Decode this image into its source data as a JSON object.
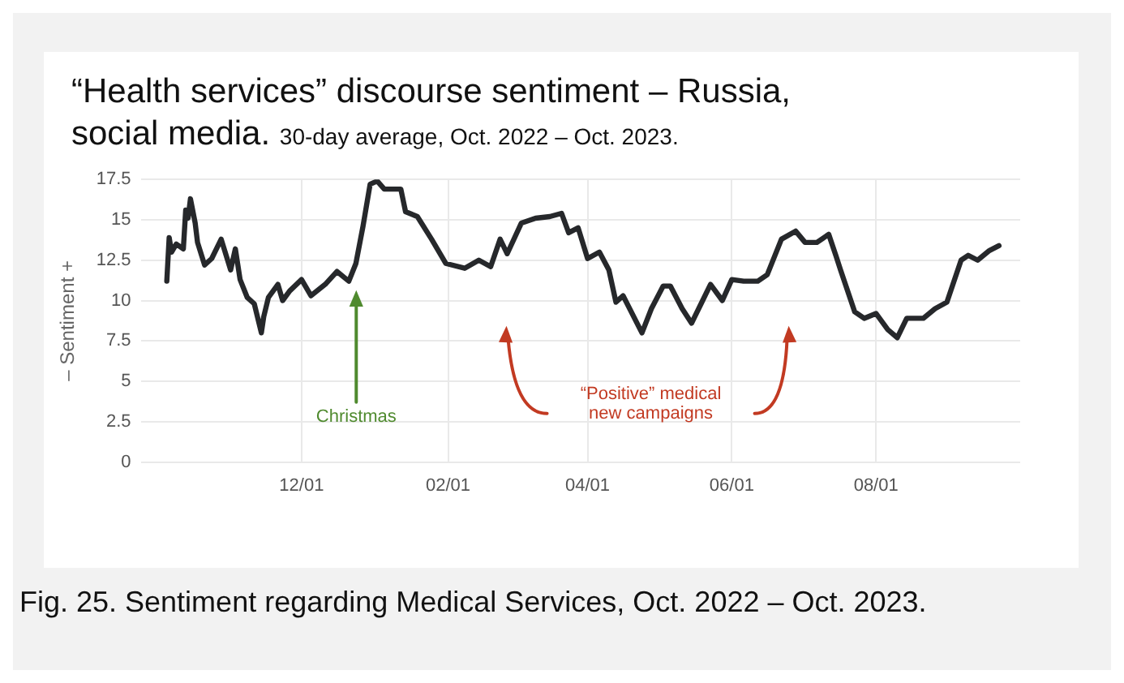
{
  "chart_data": {
    "type": "line",
    "title": "“Health services” discourse sentiment – Russia, social media.",
    "subtitle": "30-day average, Oct. 2022 – Oct. 2023.",
    "ylabel": "– Sentiment +",
    "x": [
      "2022-10-05",
      "2022-10-06",
      "2022-10-07",
      "2022-10-09",
      "2022-10-12",
      "2022-10-13",
      "2022-10-14",
      "2022-10-15",
      "2022-10-17",
      "2022-10-18",
      "2022-10-21",
      "2022-10-24",
      "2022-10-28",
      "2022-11-01",
      "2022-11-03",
      "2022-11-05",
      "2022-11-08",
      "2022-11-11",
      "2022-11-14",
      "2022-11-15",
      "2022-11-17",
      "2022-11-21",
      "2022-11-23",
      "2022-11-26",
      "2022-12-01",
      "2022-12-05",
      "2022-12-11",
      "2022-12-16",
      "2022-12-21",
      "2022-12-24",
      "2022-12-27",
      "2022-12-30",
      "2023-01-02",
      "2023-01-05",
      "2023-01-12",
      "2023-01-14",
      "2023-01-19",
      "2023-01-25",
      "2023-01-31",
      "2023-02-08",
      "2023-02-14",
      "2023-02-19",
      "2023-02-23",
      "2023-02-26",
      "2023-03-04",
      "2023-03-10",
      "2023-03-16",
      "2023-03-21",
      "2023-03-24",
      "2023-03-28",
      "2023-04-01",
      "2023-04-06",
      "2023-04-10",
      "2023-04-13",
      "2023-04-16",
      "2023-04-24",
      "2023-04-28",
      "2023-05-03",
      "2023-05-06",
      "2023-05-11",
      "2023-05-15",
      "2023-05-19",
      "2023-05-23",
      "2023-05-28",
      "2023-06-01",
      "2023-06-06",
      "2023-06-12",
      "2023-06-16",
      "2023-06-22",
      "2023-06-28",
      "2023-07-02",
      "2023-07-07",
      "2023-07-12",
      "2023-07-15",
      "2023-07-17",
      "2023-07-23",
      "2023-07-27",
      "2023-08-01",
      "2023-08-06",
      "2023-08-10",
      "2023-08-14",
      "2023-08-21",
      "2023-08-26",
      "2023-08-31",
      "2023-09-06",
      "2023-09-09",
      "2023-09-13",
      "2023-09-18",
      "2023-09-22"
    ],
    "series": [
      {
        "color": "#26282b",
        "values": [
          11.2,
          13.9,
          13.0,
          13.5,
          13.2,
          15.6,
          15.1,
          16.3,
          14.8,
          13.6,
          12.2,
          12.6,
          13.8,
          11.9,
          13.2,
          11.3,
          10.2,
          9.8,
          8.0,
          9.0,
          10.2,
          11.0,
          10.0,
          10.6,
          11.3,
          10.3,
          11.0,
          11.8,
          11.2,
          12.3,
          14.6,
          17.2,
          17.4,
          16.9,
          16.9,
          15.5,
          15.2,
          13.8,
          12.3,
          12.0,
          12.5,
          12.1,
          13.8,
          12.9,
          14.8,
          15.1,
          15.2,
          15.4,
          14.2,
          14.5,
          12.6,
          13.0,
          11.9,
          9.9,
          10.3,
          8.0,
          9.5,
          10.9,
          10.9,
          9.5,
          8.6,
          9.8,
          11.0,
          10.0,
          11.3,
          11.2,
          11.2,
          11.6,
          13.8,
          14.3,
          13.6,
          13.6,
          14.1,
          12.8,
          11.9,
          9.3,
          8.9,
          9.2,
          8.2,
          7.7,
          8.9,
          8.9,
          9.5,
          9.9,
          12.5,
          12.8,
          12.5,
          13.1,
          13.4
        ]
      }
    ],
    "xlim": [
      "2022-09-24",
      "2023-10-01"
    ],
    "xticks": [
      {
        "value": "2022-12-01",
        "label": "12/01"
      },
      {
        "value": "2023-02-01",
        "label": "02/01"
      },
      {
        "value": "2023-04-01",
        "label": "04/01"
      },
      {
        "value": "2023-06-01",
        "label": "06/01"
      },
      {
        "value": "2023-08-01",
        "label": "08/01"
      }
    ],
    "ylim": [
      0,
      17.5
    ],
    "yticks": [
      0,
      2.5,
      5,
      7.5,
      10,
      12.5,
      15,
      17.5
    ],
    "grid": true,
    "legend": false,
    "marker": "none",
    "line_style": "solid",
    "annotations": [
      "Christmas",
      "“Positive” medical\nnew campaigns",
      "Fig. 25. Sentiment regarding Medical Services, Oct. 2022 – Oct. 2023."
    ]
  }
}
